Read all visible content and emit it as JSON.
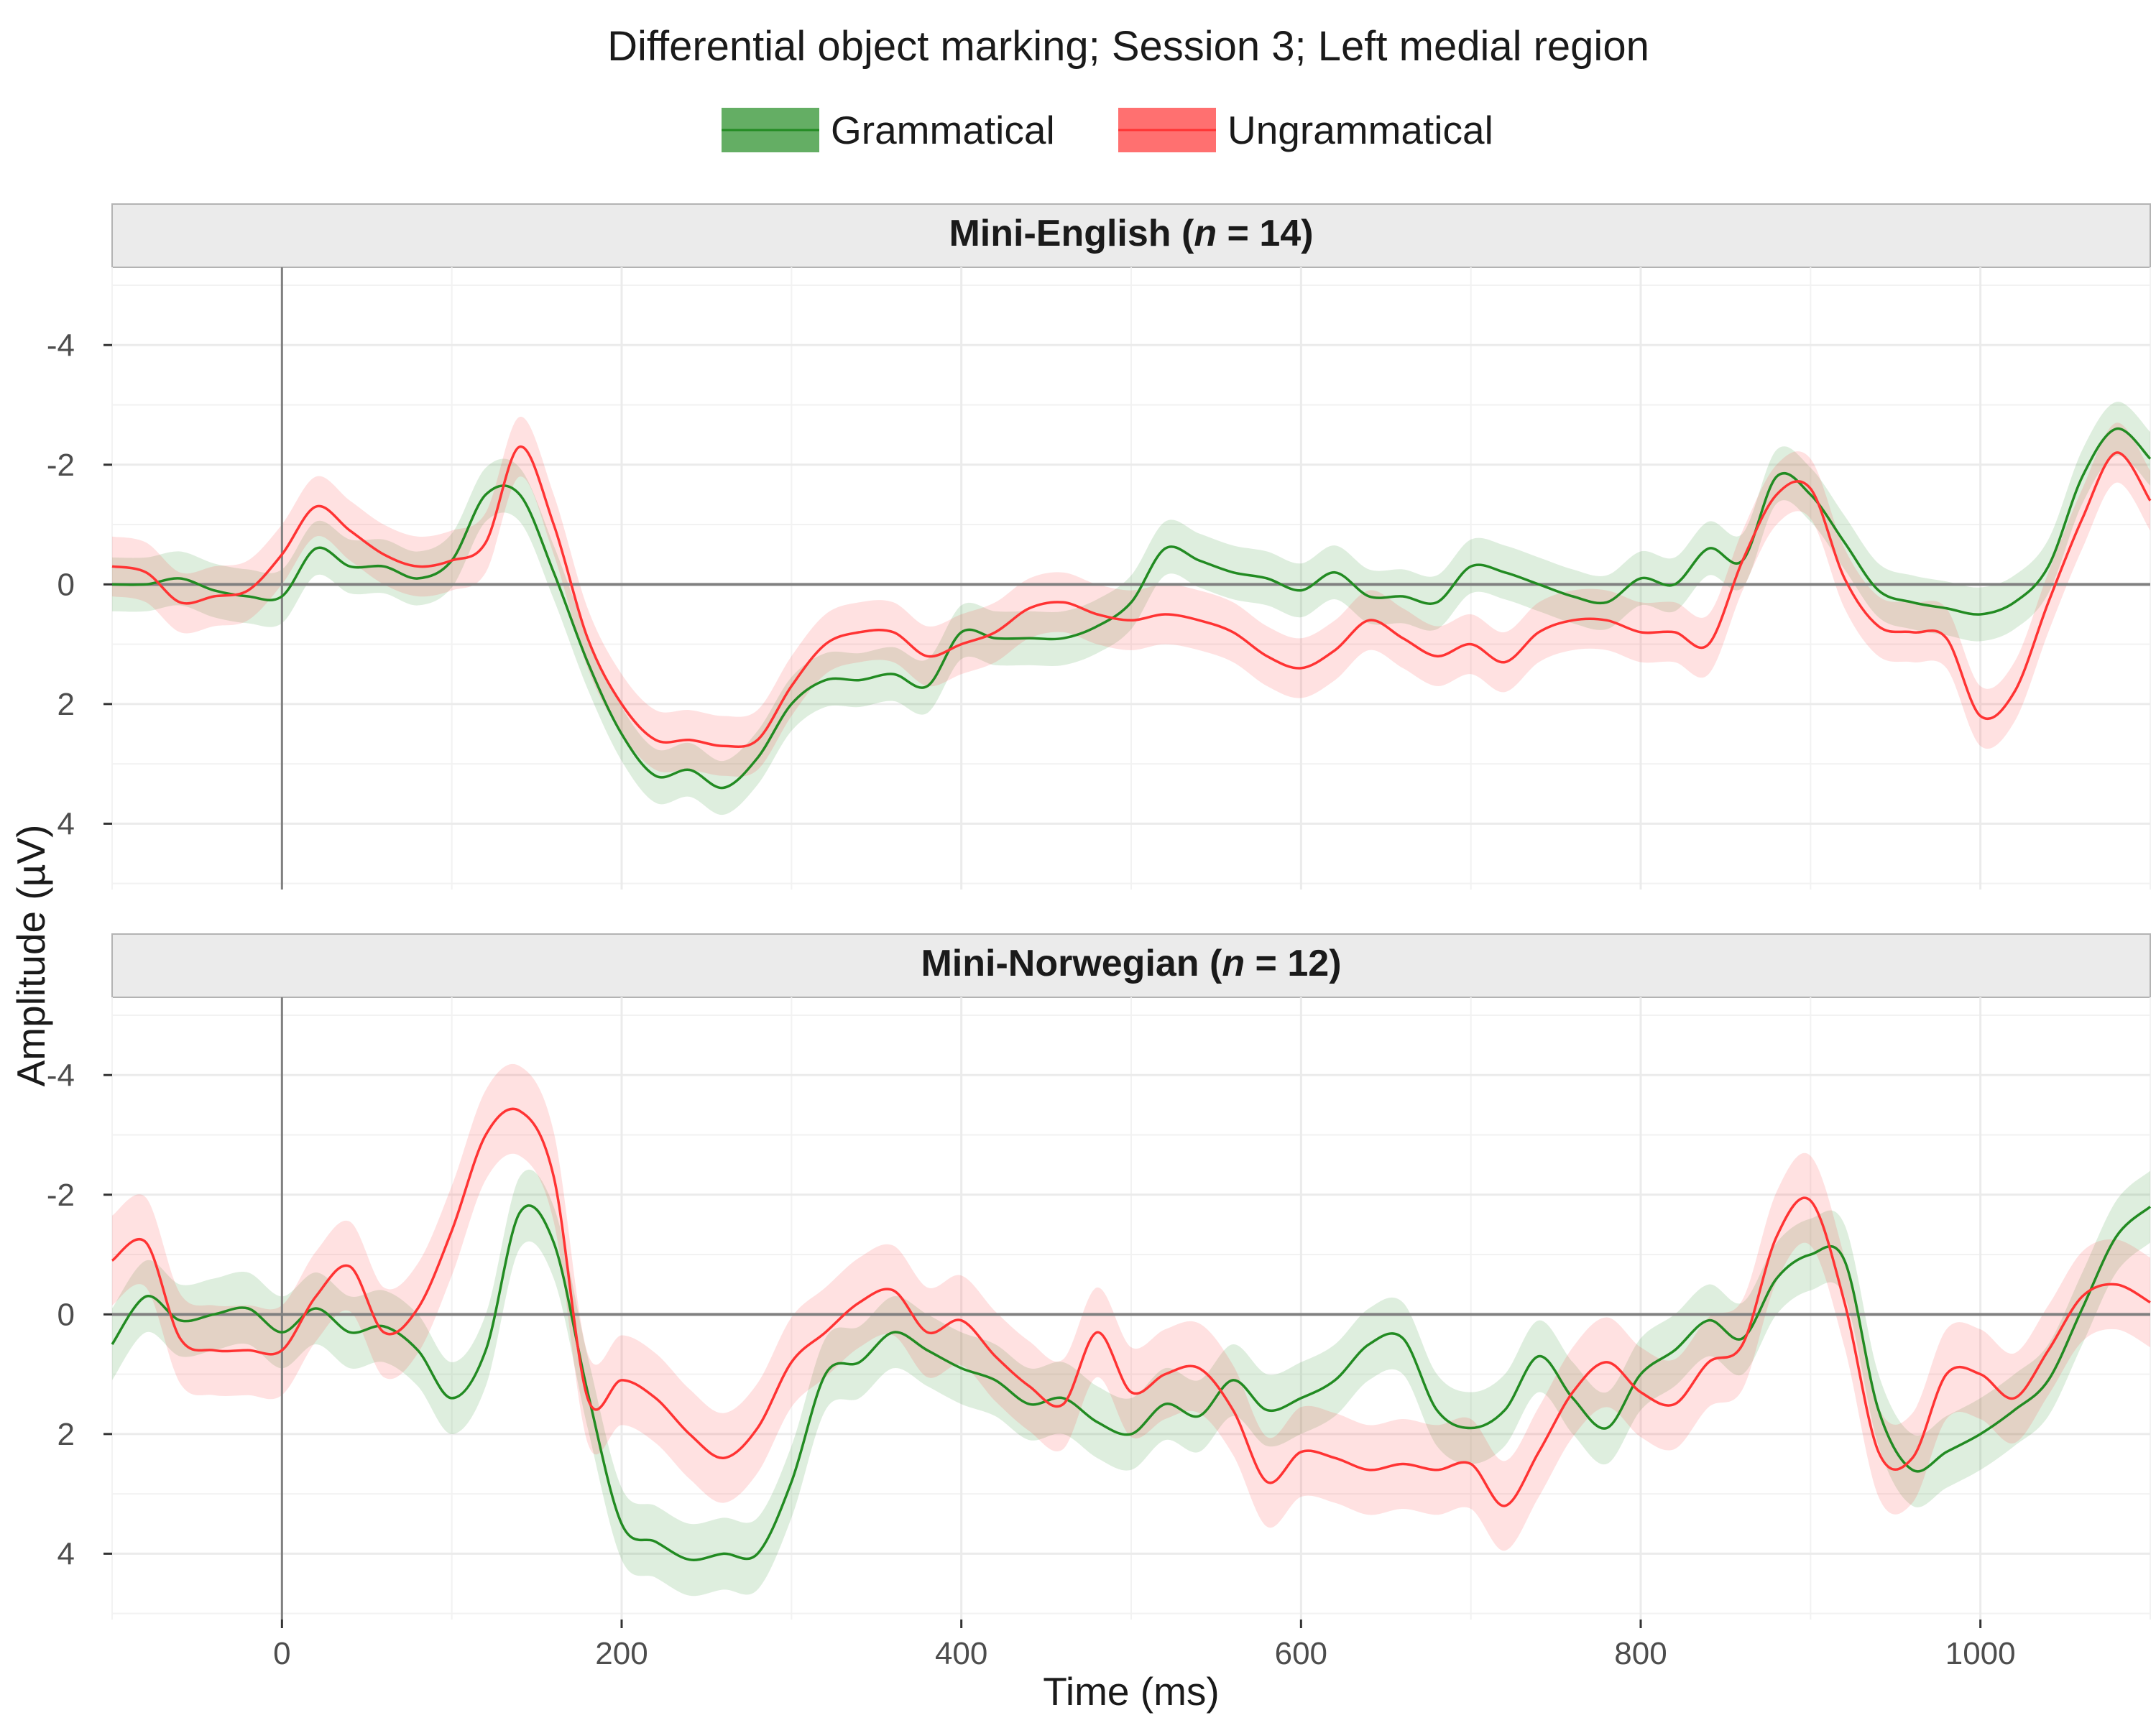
{
  "chart_data": {
    "type": "line",
    "title": "Differential object marking; Session 3; Left medial region",
    "xlabel": "Time (ms)",
    "ylabel": "Amplitude (µV)",
    "xlim": [
      -100,
      1100
    ],
    "ylim": [
      -5.3,
      5.1
    ],
    "y_reversed": true,
    "x_ticks": [
      0,
      200,
      400,
      600,
      800,
      1000
    ],
    "x_tick_labels": [
      "0",
      "200",
      "400",
      "600",
      "800",
      "1000"
    ],
    "y_ticks": [
      -4,
      -2,
      0,
      2,
      4
    ],
    "y_tick_labels": [
      "-4",
      "-2",
      "0",
      "2",
      "4"
    ],
    "grid": true,
    "legend_position": "top",
    "legend": [
      {
        "label": "Grammatical",
        "color": "#228b22"
      },
      {
        "label": "Ungrammatical",
        "color": "#ff3333"
      }
    ],
    "panels": [
      {
        "strip_label": "Mini-English (",
        "strip_n": "n",
        "strip_rest": " = 14)",
        "series": [
          {
            "name": "Grammatical",
            "color": "#228b22",
            "ci_halfwidth": 0.45,
            "x": [
              -100,
              -80,
              -60,
              -40,
              -20,
              0,
              20,
              40,
              60,
              80,
              100,
              120,
              140,
              160,
              180,
              200,
              220,
              240,
              260,
              280,
              300,
              320,
              340,
              360,
              380,
              400,
              420,
              440,
              460,
              480,
              500,
              520,
              540,
              560,
              580,
              600,
              620,
              640,
              660,
              680,
              700,
              720,
              740,
              760,
              780,
              800,
              820,
              840,
              860,
              880,
              900,
              920,
              940,
              960,
              980,
              1000,
              1020,
              1040,
              1060,
              1080,
              1100
            ],
            "values": [
              0,
              0,
              -0.1,
              0.1,
              0.2,
              0.2,
              -0.6,
              -0.3,
              -0.3,
              -0.1,
              -0.4,
              -1.5,
              -1.5,
              -0.2,
              1.3,
              2.5,
              3.2,
              3.1,
              3.4,
              2.9,
              2.0,
              1.6,
              1.6,
              1.5,
              1.7,
              0.8,
              0.9,
              0.9,
              0.9,
              0.7,
              0.3,
              -0.6,
              -0.4,
              -0.2,
              -0.1,
              0.1,
              -0.2,
              0.2,
              0.2,
              0.3,
              -0.3,
              -0.2,
              0,
              0.2,
              0.3,
              -0.1,
              0,
              -0.6,
              -0.4,
              -1.8,
              -1.5,
              -0.7,
              0.1,
              0.3,
              0.4,
              0.5,
              0.3,
              -0.3,
              -1.8,
              -2.6,
              -2.1
            ]
          },
          {
            "name": "Ungrammatical",
            "color": "#ff3333",
            "ci_halfwidth": 0.5,
            "x": [
              -100,
              -80,
              -60,
              -40,
              -20,
              0,
              20,
              40,
              60,
              80,
              100,
              120,
              140,
              160,
              180,
              200,
              220,
              240,
              260,
              280,
              300,
              320,
              340,
              360,
              380,
              400,
              420,
              440,
              460,
              480,
              500,
              520,
              540,
              560,
              580,
              600,
              620,
              640,
              660,
              680,
              700,
              720,
              740,
              760,
              780,
              800,
              820,
              840,
              860,
              880,
              900,
              920,
              940,
              960,
              980,
              1000,
              1020,
              1040,
              1060,
              1080,
              1100
            ],
            "values": [
              -0.3,
              -0.2,
              0.3,
              0.2,
              0.1,
              -0.5,
              -1.3,
              -0.9,
              -0.5,
              -0.3,
              -0.4,
              -0.7,
              -2.3,
              -1.0,
              0.9,
              2.0,
              2.6,
              2.6,
              2.7,
              2.6,
              1.7,
              1.0,
              0.8,
              0.8,
              1.2,
              1.0,
              0.8,
              0.4,
              0.3,
              0.5,
              0.6,
              0.5,
              0.6,
              0.8,
              1.2,
              1.4,
              1.1,
              0.6,
              0.9,
              1.2,
              1.0,
              1.3,
              0.8,
              0.6,
              0.6,
              0.8,
              0.8,
              1.0,
              -0.4,
              -1.5,
              -1.6,
              -0.1,
              0.7,
              0.8,
              0.9,
              2.2,
              1.8,
              0.3,
              -1.1,
              -2.2,
              -1.4
            ]
          }
        ]
      },
      {
        "strip_label": "Mini-Norwegian (",
        "strip_n": "n",
        "strip_rest": " = 12)",
        "series": [
          {
            "name": "Grammatical",
            "color": "#228b22",
            "ci_halfwidth": 0.6,
            "x": [
              -100,
              -80,
              -60,
              -40,
              -20,
              0,
              20,
              40,
              60,
              80,
              100,
              120,
              140,
              160,
              180,
              200,
              220,
              240,
              260,
              280,
              300,
              320,
              340,
              360,
              380,
              400,
              420,
              440,
              460,
              480,
              500,
              520,
              540,
              560,
              580,
              600,
              620,
              640,
              660,
              680,
              700,
              720,
              740,
              760,
              780,
              800,
              820,
              840,
              860,
              880,
              900,
              920,
              940,
              960,
              980,
              1000,
              1020,
              1040,
              1060,
              1080,
              1100
            ],
            "values": [
              0.5,
              -0.3,
              0.1,
              0,
              -0.1,
              0.3,
              -0.1,
              0.3,
              0.2,
              0.6,
              1.4,
              0.6,
              -1.7,
              -1.2,
              1.3,
              3.5,
              3.8,
              4.1,
              4.0,
              4.0,
              2.8,
              1.0,
              0.8,
              0.3,
              0.6,
              0.9,
              1.1,
              1.5,
              1.4,
              1.8,
              2.0,
              1.5,
              1.7,
              1.1,
              1.6,
              1.4,
              1.1,
              0.5,
              0.4,
              1.6,
              1.9,
              1.6,
              0.7,
              1.4,
              1.9,
              1.0,
              0.6,
              0.1,
              0.4,
              -0.6,
              -1.0,
              -0.9,
              1.6,
              2.6,
              2.3,
              2.0,
              1.6,
              1.1,
              -0.1,
              -1.3,
              -1.8
            ]
          },
          {
            "name": "Ungrammatical",
            "color": "#ff3333",
            "ci_halfwidth": 0.75,
            "x": [
              -100,
              -80,
              -60,
              -40,
              -20,
              0,
              20,
              40,
              60,
              80,
              100,
              120,
              140,
              160,
              180,
              200,
              220,
              240,
              260,
              280,
              300,
              320,
              340,
              360,
              380,
              400,
              420,
              440,
              460,
              480,
              500,
              520,
              540,
              560,
              580,
              600,
              620,
              640,
              660,
              680,
              700,
              720,
              740,
              760,
              780,
              800,
              820,
              840,
              860,
              880,
              900,
              920,
              940,
              960,
              980,
              1000,
              1020,
              1040,
              1060,
              1080,
              1100
            ],
            "values": [
              -0.9,
              -1.2,
              0.4,
              0.6,
              0.6,
              0.6,
              -0.3,
              -0.8,
              0.3,
              -0.1,
              -1.4,
              -3.0,
              -3.4,
              -2.3,
              1.4,
              1.1,
              1.4,
              2.0,
              2.4,
              1.9,
              0.8,
              0.3,
              -0.2,
              -0.4,
              0.3,
              0.1,
              0.7,
              1.2,
              1.5,
              0.3,
              1.3,
              1.0,
              0.9,
              1.6,
              2.8,
              2.3,
              2.4,
              2.6,
              2.5,
              2.6,
              2.5,
              3.2,
              2.3,
              1.3,
              0.8,
              1.3,
              1.5,
              0.8,
              0.5,
              -1.3,
              -1.9,
              -0.2,
              2.3,
              2.4,
              1.0,
              1.0,
              1.4,
              0.6,
              -0.3,
              -0.5,
              -0.2
            ]
          }
        ]
      }
    ]
  }
}
